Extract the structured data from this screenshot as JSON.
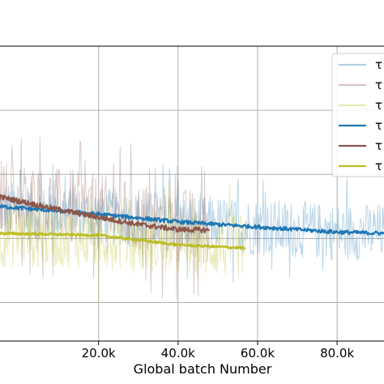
{
  "chart_data": {
    "type": "line",
    "xlabel": "Global batch Number",
    "ylabel": "",
    "xlim": [
      -5000,
      92000
    ],
    "ylim": [
      -1.6,
      3.0
    ],
    "grid": true,
    "legend_position": "top-right",
    "x_ticks": [
      {
        "value": 20000,
        "label": "20.0k"
      },
      {
        "value": 40000,
        "label": "40.0k"
      },
      {
        "value": 60000,
        "label": "60.0k"
      },
      {
        "value": 80000,
        "label": "80.0k"
      }
    ],
    "y_gridlines": [
      -1.0,
      0.0,
      1.0,
      2.0
    ],
    "series": [
      {
        "name": "τ",
        "kind": "raw",
        "color": "#1f77b4",
        "opacity": 0.3,
        "x_end": 92000,
        "mean": 0.15,
        "spread": 0.45,
        "peak": 0.9,
        "trend": [
          [
            -5000,
            0.45
          ],
          [
            20000,
            0.35
          ],
          [
            40000,
            0.25
          ],
          [
            60000,
            0.18
          ],
          [
            80000,
            0.1
          ],
          [
            92000,
            0.1
          ]
        ]
      },
      {
        "name": "τ",
        "kind": "raw",
        "color": "#8c564b",
        "opacity": 0.3,
        "x_end": 48000,
        "mean": 0.3,
        "spread": 0.6,
        "peak": 1.2,
        "trend": [
          [
            -5000,
            0.65
          ],
          [
            20000,
            0.4
          ],
          [
            40000,
            0.2
          ],
          [
            48000,
            0.15
          ]
        ]
      },
      {
        "name": "τ",
        "kind": "raw",
        "color": "#bcbd22",
        "opacity": 0.3,
        "x_end": 57000,
        "mean": 0.05,
        "spread": 0.5,
        "peak": 1.0,
        "trend": [
          [
            -5000,
            0.05
          ],
          [
            20000,
            0.02
          ],
          [
            40000,
            -0.1
          ],
          [
            57000,
            -0.12
          ]
        ]
      },
      {
        "name": "τ",
        "kind": "smooth",
        "color": "#1f77b4",
        "opacity": 1.0,
        "x_end": 92000,
        "noise": 0.03,
        "trend": [
          [
            -5000,
            0.5
          ],
          [
            20000,
            0.38
          ],
          [
            40000,
            0.26
          ],
          [
            60000,
            0.18
          ],
          [
            80000,
            0.1
          ],
          [
            92000,
            0.08
          ]
        ]
      },
      {
        "name": "τ",
        "kind": "smooth",
        "color": "#8c564b",
        "opacity": 1.0,
        "x_end": 48000,
        "noise": 0.04,
        "trend": [
          [
            -5000,
            0.65
          ],
          [
            10000,
            0.45
          ],
          [
            20000,
            0.33
          ],
          [
            30000,
            0.22
          ],
          [
            40000,
            0.14
          ],
          [
            48000,
            0.13
          ]
        ]
      },
      {
        "name": "τ",
        "kind": "smooth",
        "color": "#bcbd22",
        "opacity": 1.0,
        "x_end": 57000,
        "noise": 0.02,
        "trend": [
          [
            -5000,
            0.08
          ],
          [
            20000,
            0.05
          ],
          [
            40000,
            -0.1
          ],
          [
            57000,
            -0.15
          ]
        ]
      }
    ]
  }
}
